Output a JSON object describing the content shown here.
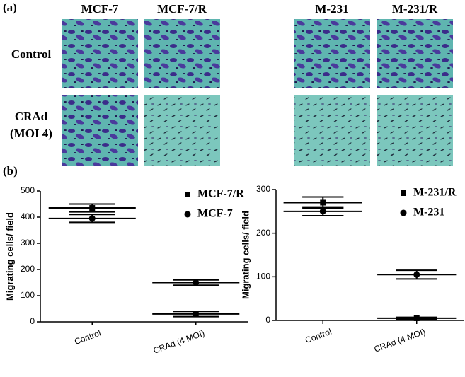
{
  "panel_labels": [
    "(a)",
    "(b)"
  ],
  "images": {
    "columns": [
      "MCF-7",
      "MCF-7/R",
      "M-231",
      "M-231/R"
    ],
    "rows": [
      [
        "Control"
      ],
      [
        "CRAd",
        "(MOI 4)"
      ]
    ]
  },
  "chart_data": [
    {
      "type": "dot",
      "categories": [
        "Control",
        "CRAd (4 MOI)"
      ],
      "y_label": "Migrating cells/ field",
      "ylim": [
        0,
        500
      ],
      "yticks": [
        0,
        100,
        200,
        300,
        400,
        500
      ],
      "series": [
        {
          "name": "MCF-7/R",
          "marker": "square",
          "color": "#000000",
          "values": [
            435,
            30
          ],
          "errors": [
            15,
            10
          ]
        },
        {
          "name": "MCF-7",
          "marker": "circle",
          "color": "#000000",
          "values": [
            395,
            150
          ],
          "errors": [
            15,
            10
          ]
        }
      ]
    },
    {
      "type": "dot",
      "categories": [
        "Control",
        "CRAd (4 MOI)"
      ],
      "y_label": "Migrating cells/ field",
      "ylim": [
        0,
        300
      ],
      "yticks": [
        0,
        100,
        200,
        300
      ],
      "series": [
        {
          "name": "M-231/R",
          "marker": "square",
          "color": "#000000",
          "values": [
            270,
            5
          ],
          "errors": [
            13,
            2
          ]
        },
        {
          "name": "M-231",
          "marker": "circle",
          "color": "#000000",
          "values": [
            250,
            105
          ],
          "errors": [
            10,
            10
          ]
        }
      ]
    }
  ]
}
